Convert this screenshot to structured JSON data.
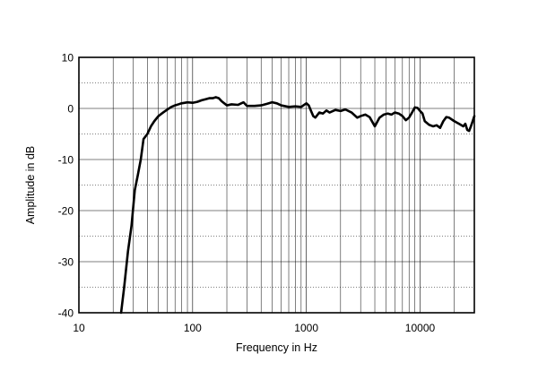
{
  "chart_data": {
    "type": "line",
    "title": "",
    "xlabel": "Frequency in Hz",
    "ylabel": "Amplitude in dB",
    "x_scale": "log",
    "xlim": [
      10,
      30000
    ],
    "ylim": [
      -40,
      10
    ],
    "x_ticks": [
      {
        "value": 10,
        "label": "10"
      },
      {
        "value": 100,
        "label": "100"
      },
      {
        "value": 1000,
        "label": "1000"
      },
      {
        "value": 10000,
        "label": "10000"
      }
    ],
    "y_ticks": [
      {
        "value": 10,
        "label": "10"
      },
      {
        "value": 0,
        "label": "0"
      },
      {
        "value": -10,
        "label": "-10"
      },
      {
        "value": -20,
        "label": "-20"
      },
      {
        "value": -30,
        "label": "-30"
      },
      {
        "value": -40,
        "label": "-40"
      }
    ],
    "grid": true,
    "legend": "none",
    "series": [
      {
        "color": "#000000",
        "x": [
          23.5,
          25,
          27,
          29,
          31,
          33,
          35,
          37,
          40,
          43,
          46,
          50,
          55,
          60,
          65,
          70,
          75,
          80,
          90,
          100,
          110,
          120,
          130,
          140,
          150,
          160,
          170,
          180,
          200,
          220,
          250,
          280,
          300,
          350,
          400,
          450,
          500,
          550,
          600,
          700,
          800,
          900,
          1000,
          1050,
          1100,
          1150,
          1200,
          1300,
          1400,
          1500,
          1600,
          1800,
          2000,
          2200,
          2500,
          2800,
          3000,
          3300,
          3600,
          4000,
          4400,
          4800,
          5200,
          5600,
          6000,
          6500,
          7000,
          7500,
          8000,
          8500,
          9000,
          9500,
          10000,
          10500,
          11000,
          12000,
          13000,
          14000,
          15000,
          16000,
          17000,
          18000,
          20000,
          22000,
          24000,
          25000,
          26000,
          27000,
          28000,
          29000,
          30000
        ],
        "y": [
          -40,
          -35,
          -28,
          -23,
          -16,
          -13,
          -10,
          -6,
          -5,
          -3.5,
          -2.5,
          -1.5,
          -0.8,
          -0.2,
          0.3,
          0.6,
          0.8,
          1,
          1.2,
          1.1,
          1.3,
          1.6,
          1.8,
          2,
          2,
          2.2,
          2,
          1.4,
          0.6,
          0.8,
          0.7,
          1.2,
          0.5,
          0.5,
          0.6,
          0.9,
          1.2,
          1,
          0.6,
          0.3,
          0.4,
          0.3,
          1,
          0.6,
          -0.5,
          -1.5,
          -1.8,
          -0.8,
          -1,
          -0.4,
          -0.8,
          -0.3,
          -0.5,
          -0.2,
          -0.8,
          -1.8,
          -1.5,
          -1.2,
          -1.7,
          -3.5,
          -1.8,
          -1.2,
          -1,
          -1.2,
          -0.8,
          -1,
          -1.5,
          -2.3,
          -1.8,
          -0.8,
          0.2,
          0.1,
          -0.5,
          -1,
          -2.5,
          -3.2,
          -3.5,
          -3.3,
          -3.8,
          -2.5,
          -1.7,
          -1.8,
          -2.5,
          -3,
          -3.5,
          -3,
          -4.2,
          -4.4,
          -3.5,
          -2.5,
          -1.5
        ]
      }
    ]
  }
}
